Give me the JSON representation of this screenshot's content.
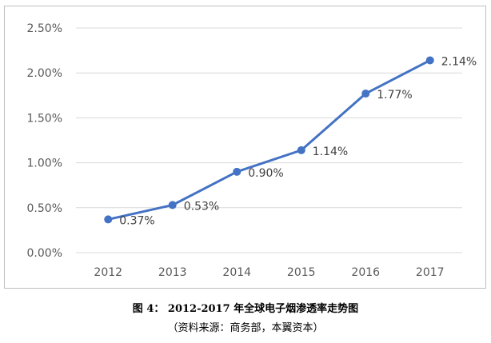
{
  "chart_data": {
    "type": "line",
    "categories": [
      "2012",
      "2013",
      "2014",
      "2015",
      "2016",
      "2017"
    ],
    "series": [
      {
        "values": [
          0.37,
          0.53,
          0.9,
          1.14,
          1.77,
          2.14
        ]
      }
    ],
    "data_labels": [
      "0.37%",
      "0.53%",
      "0.90%",
      "1.14%",
      "1.77%",
      "2.14%"
    ],
    "y_ticks": [
      "0.00%",
      "0.50%",
      "1.00%",
      "1.50%",
      "2.00%",
      "2.50%"
    ],
    "ylim": [
      0,
      2.5
    ],
    "grid": true,
    "legend": "none",
    "line_color": "#4472c4",
    "grid_color": "#d9d9d9"
  },
  "caption": {
    "title": "图 4： 2012-2017 年全球电子烟渗透率走势图",
    "source": "（资料来源：商务部，本翼资本）"
  }
}
